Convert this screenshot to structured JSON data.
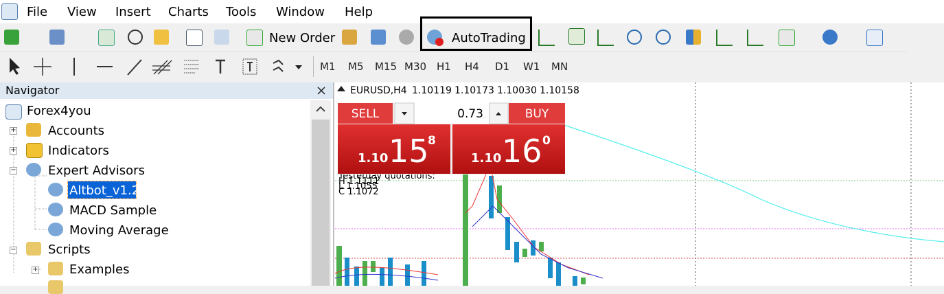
{
  "menu": [
    "File",
    "View",
    "Insert",
    "Charts",
    "Tools",
    "Window",
    "Help"
  ],
  "toolbar": {
    "new_order": "New Order",
    "auto_trading": "AutoTrading"
  },
  "timeframes": [
    "M1",
    "M5",
    "M15",
    "M30",
    "H1",
    "H4",
    "D1",
    "W1",
    "MN"
  ],
  "navigator": {
    "title": "Navigator",
    "tree": [
      "Forex4you",
      "Accounts",
      "Indicators",
      "Expert Advisors",
      "Altbot_v1.2",
      "MACD Sample",
      "Moving Average",
      "Scripts",
      "Examples"
    ]
  },
  "chart": {
    "symbol": "EURUSD,H4",
    "quotes": [
      "1.10119",
      "1.10173",
      "1.10030",
      "1.10158"
    ],
    "overlay": [
      "Yesterday quotations:",
      "H 1.1111",
      "L 1.1055",
      "C 1.1072"
    ]
  },
  "trade_panel": {
    "sell": "SELL",
    "buy": "BUY",
    "volume": "0.73",
    "sell_price": {
      "big": "1.10",
      "pips": "15",
      "point": "8"
    },
    "buy_price": {
      "big": "1.10",
      "pips": "16",
      "point": "0"
    }
  }
}
